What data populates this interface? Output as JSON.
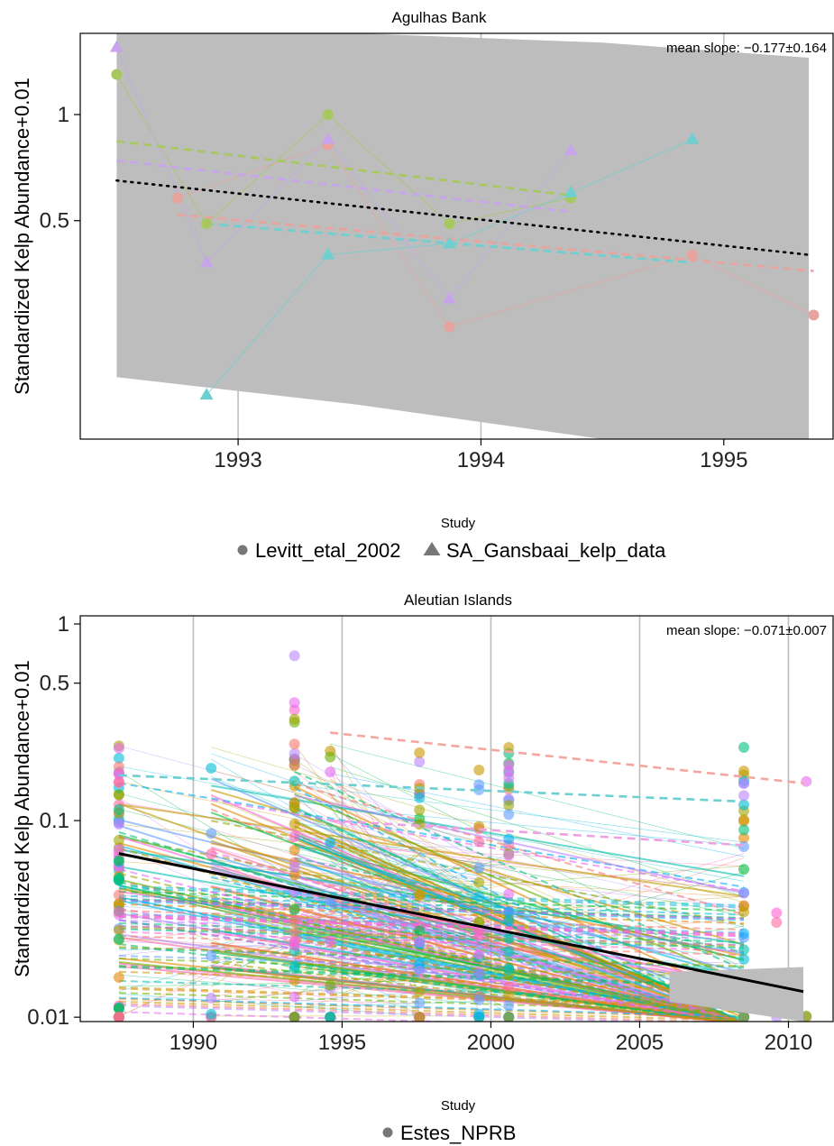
{
  "chart_data": [
    {
      "type": "scatter",
      "title": "Agulhas Bank",
      "ylabel": "Standardized Kelp Abundance+0.01",
      "xlabel": "",
      "y_scale": "log",
      "x_ticks": [
        "1993",
        "1994",
        "1995"
      ],
      "y_ticks": [
        "0.5",
        "1"
      ],
      "xlim": [
        1992.35,
        1995.45
      ],
      "ylim": [
        0.12,
        1.7
      ],
      "grid": "vertical",
      "annotation": "mean slope: −0.177±0.164",
      "legend": {
        "title": "Study",
        "position": "bottom",
        "entries": [
          "Levitt_etal_2002",
          "SA_Gansbaai_kelp_data"
        ]
      },
      "confidence_band": {
        "x": [
          1992.5,
          1993.5,
          1994.5,
          1995.35
        ],
        "upper": [
          1.7,
          1.7,
          1.6,
          1.45
        ],
        "lower": [
          0.18,
          0.15,
          0.12,
          0.11
        ]
      },
      "overall_trend": {
        "style": "dotted",
        "color": "#000000",
        "x": [
          1992.5,
          1995.35
        ],
        "y": [
          0.65,
          0.4
        ]
      },
      "series": [
        {
          "color": "#E7A49E",
          "marker": "circle",
          "points": [
            [
              1992.75,
              0.58
            ],
            [
              1993.37,
              0.82
            ],
            [
              1993.87,
              0.25
            ],
            [
              1994.87,
              0.4
            ],
            [
              1995.37,
              0.27
            ]
          ],
          "trend": {
            "x": [
              1992.75,
              1995.37
            ],
            "y": [
              0.52,
              0.36
            ]
          }
        },
        {
          "color": "#A6C85E",
          "marker": "circle",
          "points": [
            [
              1992.5,
              1.3
            ],
            [
              1992.87,
              0.49
            ],
            [
              1993.37,
              1.0
            ],
            [
              1993.87,
              0.49
            ],
            [
              1994.37,
              0.58
            ]
          ],
          "trend": {
            "x": [
              1992.5,
              1994.37
            ],
            "y": [
              0.84,
              0.59
            ]
          }
        },
        {
          "color": "#C8A4EC",
          "marker": "triangle",
          "points": [
            [
              1992.5,
              1.55
            ],
            [
              1992.87,
              0.38
            ],
            [
              1993.37,
              0.85
            ],
            [
              1993.87,
              0.3
            ],
            [
              1994.37,
              0.79
            ]
          ],
          "trend": {
            "x": [
              1992.5,
              1994.37
            ],
            "y": [
              0.74,
              0.53
            ]
          }
        },
        {
          "color": "#6DCFD0",
          "marker": "triangle",
          "points": [
            [
              1992.87,
              0.16
            ],
            [
              1993.37,
              0.4
            ],
            [
              1993.87,
              0.43
            ],
            [
              1994.37,
              0.6
            ],
            [
              1994.87,
              0.85
            ]
          ],
          "trend": {
            "x": [
              1992.87,
              1994.87
            ],
            "y": [
              0.49,
              0.38
            ]
          }
        }
      ]
    },
    {
      "type": "scatter",
      "title": "Aleutian Islands",
      "ylabel": "Standardized Kelp Abundance+0.01",
      "xlabel": "",
      "y_scale": "log",
      "x_ticks": [
        "1990",
        "1995",
        "2000",
        "2005",
        "2010"
      ],
      "y_ticks": [
        "0.01",
        "0.1",
        "0.5",
        "1"
      ],
      "xlim": [
        1986.2,
        2011.5
      ],
      "ylim": [
        0.0095,
        1.1
      ],
      "grid": "vertical",
      "annotation": "mean slope: −0.071±0.007",
      "legend": {
        "title": "Study",
        "position": "bottom",
        "entries": [
          "Estes_NPRB"
        ]
      },
      "survey_years": [
        1987.5,
        1990.6,
        1993.4,
        1994.6,
        1997.6,
        1999.6,
        2000.6,
        2008.5,
        2009.6,
        2010.6
      ],
      "confidence_band": {
        "x": [
          2006,
          2010.5
        ],
        "upper": [
          0.017,
          0.018
        ],
        "lower": [
          0.012,
          0.0095
        ]
      },
      "overall_trend": {
        "style": "solid",
        "color": "#000000",
        "x": [
          1987.5,
          2010.5
        ],
        "y": [
          0.068,
          0.0135
        ]
      },
      "highlighted_trends": [
        {
          "color": "#F4A6A0",
          "style": "dashed",
          "x": [
            1994.6,
            2010.5
          ],
          "y": [
            0.28,
            0.155
          ]
        },
        {
          "color": "#6DCFD0",
          "style": "dashed",
          "x": [
            1987.5,
            2008.5
          ],
          "y": [
            0.17,
            0.125
          ]
        },
        {
          "color": "#EFA0E0",
          "style": "dashed",
          "x": [
            1994.6,
            2008.5
          ],
          "y": [
            0.1,
            0.075
          ]
        }
      ]
    }
  ]
}
